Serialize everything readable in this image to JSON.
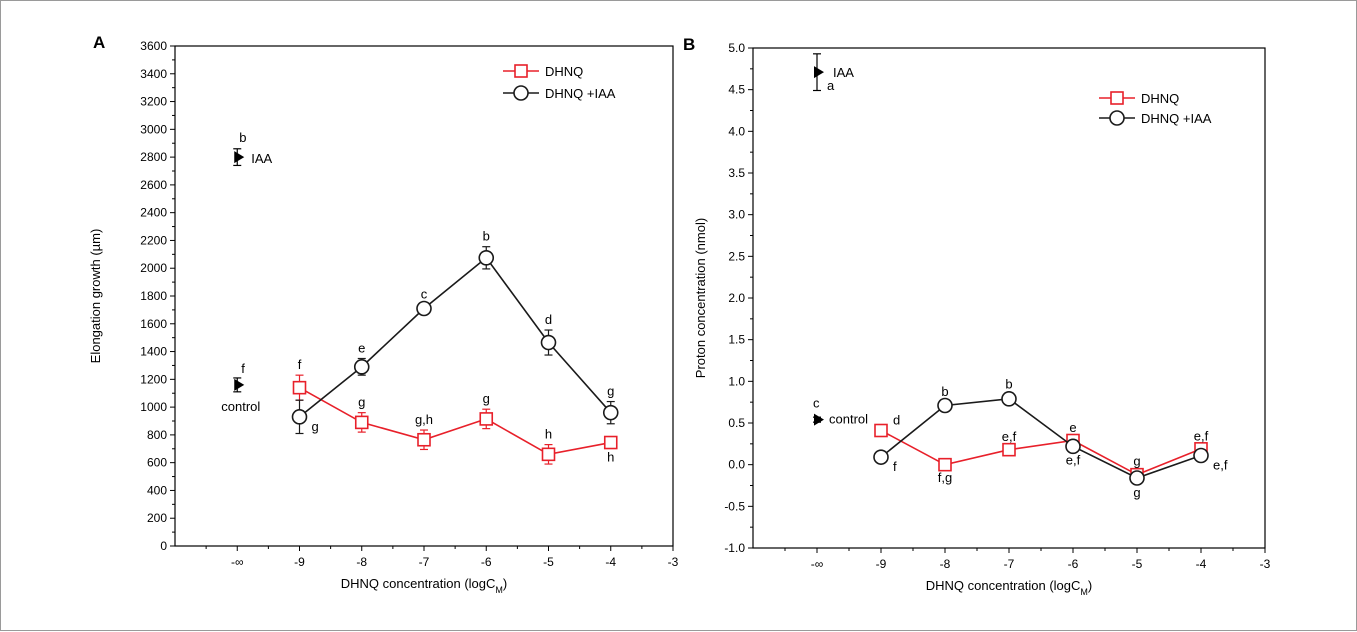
{
  "chart_data": [
    {
      "panel_label": "A",
      "type": "line",
      "ylabel": "Elongation growth (µm)",
      "xlabel_main": "DHNQ concentration (logC",
      "xlabel_sub": "M",
      "xlabel_end": ")",
      "ylim": [
        0,
        3600
      ],
      "y_ticks": [
        0,
        200,
        400,
        600,
        800,
        1000,
        1200,
        1400,
        1600,
        1800,
        2000,
        2200,
        2400,
        2600,
        2800,
        3000,
        3200,
        3400,
        3600
      ],
      "xlim": [
        -11,
        -3
      ],
      "x_ticks": [
        {
          "v": -10,
          "label": "-∞"
        },
        {
          "v": -9,
          "label": "-9"
        },
        {
          "v": -8,
          "label": "-8"
        },
        {
          "v": -7,
          "label": "-7"
        },
        {
          "v": -6,
          "label": "-6"
        },
        {
          "v": -5,
          "label": "-5"
        },
        {
          "v": -4,
          "label": "-4"
        },
        {
          "v": -3,
          "label": "-3"
        }
      ],
      "legend_position": "top-right",
      "series": [
        {
          "name": "DHNQ",
          "color": "#e8202a",
          "marker": "square",
          "x": [
            -9,
            -8,
            -7,
            -6,
            -5,
            -4
          ],
          "y": [
            1140,
            890,
            765,
            915,
            660,
            745
          ],
          "err": [
            90,
            70,
            70,
            70,
            70,
            30
          ],
          "letters": [
            "f",
            "g",
            "g,h",
            "g",
            "h",
            "h"
          ],
          "letter_pos": [
            "above",
            "above",
            "above",
            "above",
            "above",
            "below"
          ]
        },
        {
          "name": "DHNQ +IAA",
          "color": "#1a1a1a",
          "marker": "circle",
          "x": [
            -9,
            -8,
            -7,
            -6,
            -5,
            -4
          ],
          "y": [
            930,
            1290,
            1710,
            2075,
            1465,
            960
          ],
          "err": [
            120,
            60,
            30,
            80,
            90,
            80
          ],
          "letters": [
            "g",
            "e",
            "c",
            "b",
            "d",
            "g"
          ],
          "letter_pos": [
            "below-right",
            "above",
            "above",
            "above",
            "above",
            "above"
          ]
        }
      ],
      "references": [
        {
          "name": "IAA",
          "letter": "b",
          "x": -10,
          "y": 2800,
          "err": 60
        },
        {
          "name": "control",
          "letter": "f",
          "x": -10,
          "y": 1160,
          "err": 50
        }
      ]
    },
    {
      "panel_label": "B",
      "type": "line",
      "ylabel": "Proton concentration (nmol)",
      "xlabel_main": "DHNQ concentration (logC",
      "xlabel_sub": "M",
      "xlabel_end": ")",
      "ylim": [
        -1.0,
        5.0
      ],
      "y_ticks": [
        -1.0,
        -0.5,
        0.0,
        0.5,
        1.0,
        1.5,
        2.0,
        2.5,
        3.0,
        3.5,
        4.0,
        4.5,
        5.0
      ],
      "xlim": [
        -11,
        -3
      ],
      "x_ticks": [
        {
          "v": -10,
          "label": "-∞"
        },
        {
          "v": -9,
          "label": "-9"
        },
        {
          "v": -8,
          "label": "-8"
        },
        {
          "v": -7,
          "label": "-7"
        },
        {
          "v": -6,
          "label": "-6"
        },
        {
          "v": -5,
          "label": "-5"
        },
        {
          "v": -4,
          "label": "-4"
        },
        {
          "v": -3,
          "label": "-3"
        }
      ],
      "legend_position": "top-right",
      "series": [
        {
          "name": "DHNQ",
          "color": "#e8202a",
          "marker": "square",
          "x": [
            -9,
            -8,
            -7,
            -6,
            -5,
            -4
          ],
          "y": [
            0.41,
            0.0,
            0.18,
            0.29,
            -0.12,
            0.19
          ],
          "err": [
            0.03,
            0.03,
            0.03,
            0.03,
            0.04,
            0.03
          ],
          "letters": [
            "d",
            "f,g",
            "e,f",
            "e",
            "g",
            "e,f"
          ],
          "letter_pos": [
            "above-right",
            "below",
            "above",
            "above",
            "above",
            "above"
          ]
        },
        {
          "name": "DHNQ +IAA",
          "color": "#1a1a1a",
          "marker": "circle",
          "x": [
            -9,
            -8,
            -7,
            -6,
            -5,
            -4
          ],
          "y": [
            0.09,
            0.71,
            0.79,
            0.22,
            -0.16,
            0.11
          ],
          "err": [
            0.05,
            0.04,
            0.05,
            0.04,
            0.05,
            0.04
          ],
          "letters": [
            "f",
            "b",
            "b",
            "e,f",
            "g",
            "e,f"
          ],
          "letter_pos": [
            "below-right",
            "above",
            "above",
            "below",
            "below",
            "below-right"
          ]
        }
      ],
      "references": [
        {
          "name": "IAA",
          "letter": "a",
          "x": -10,
          "y": 4.71,
          "err": 0.22
        },
        {
          "name": "control",
          "letter": "c",
          "x": -10,
          "y": 0.54,
          "err": 0.03
        }
      ]
    }
  ]
}
